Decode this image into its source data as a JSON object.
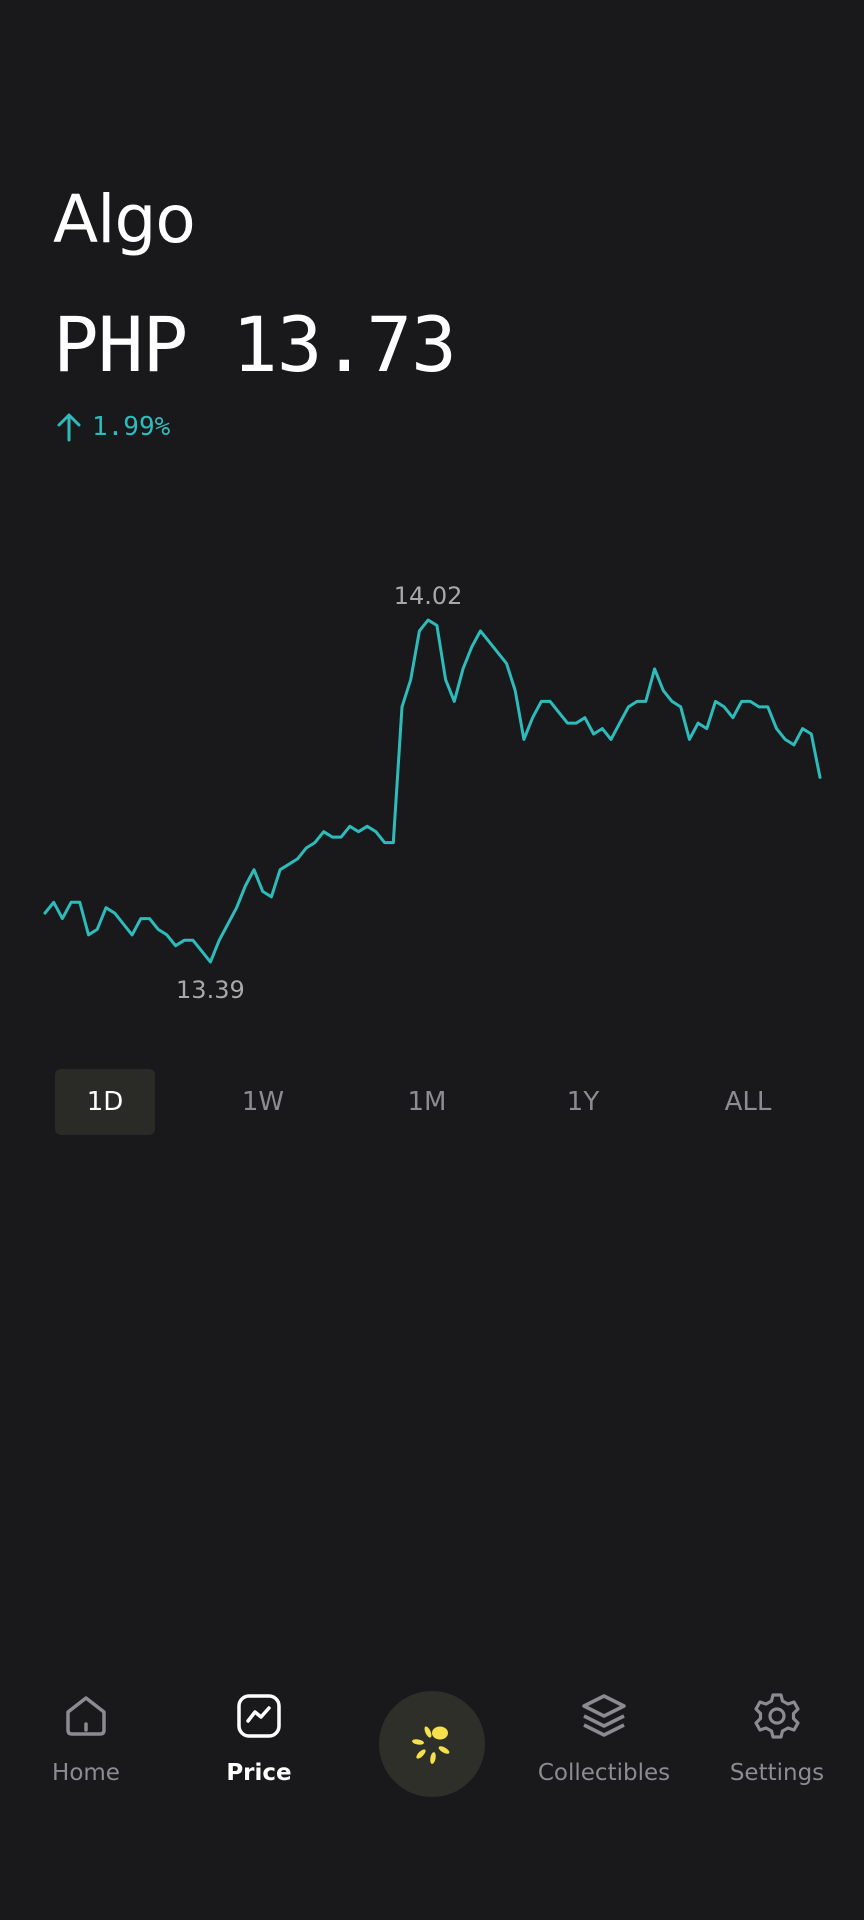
{
  "asset": {
    "name": "Algo"
  },
  "price": {
    "currency": "PHP",
    "value": "13.73"
  },
  "change": {
    "direction": "up",
    "value": "1.99%",
    "color": "#2dbcbc"
  },
  "chart_data": {
    "type": "line",
    "series_color": "#2dbcbc",
    "high_label": "14.02",
    "low_label": "13.39",
    "ylim": [
      13.39,
      14.02
    ],
    "values": [
      13.48,
      13.5,
      13.47,
      13.5,
      13.5,
      13.44,
      13.45,
      13.49,
      13.48,
      13.46,
      13.44,
      13.47,
      13.47,
      13.45,
      13.44,
      13.42,
      13.43,
      13.43,
      13.41,
      13.39,
      13.43,
      13.46,
      13.49,
      13.53,
      13.56,
      13.52,
      13.51,
      13.56,
      13.57,
      13.58,
      13.6,
      13.61,
      13.63,
      13.62,
      13.62,
      13.64,
      13.63,
      13.64,
      13.63,
      13.61,
      13.61,
      13.86,
      13.91,
      14.0,
      14.02,
      14.01,
      13.91,
      13.87,
      13.93,
      13.97,
      14.0,
      13.98,
      13.96,
      13.94,
      13.89,
      13.8,
      13.84,
      13.87,
      13.87,
      13.85,
      13.83,
      13.83,
      13.84,
      13.81,
      13.82,
      13.8,
      13.83,
      13.86,
      13.87,
      13.87,
      13.93,
      13.89,
      13.87,
      13.86,
      13.8,
      13.83,
      13.82,
      13.87,
      13.86,
      13.84,
      13.87,
      13.87,
      13.86,
      13.86,
      13.82,
      13.8,
      13.79,
      13.82,
      13.81,
      13.73
    ]
  },
  "ranges": [
    {
      "label": "1D",
      "active": true
    },
    {
      "label": "1W",
      "active": false
    },
    {
      "label": "1M",
      "active": false
    },
    {
      "label": "1Y",
      "active": false
    },
    {
      "label": "ALL",
      "active": false
    }
  ],
  "nav": {
    "home": "Home",
    "price": "Price",
    "center_icon": "sunburst-icon",
    "center_color": "#f5e14c",
    "collectibles": "Collectibles",
    "settings": "Settings"
  }
}
